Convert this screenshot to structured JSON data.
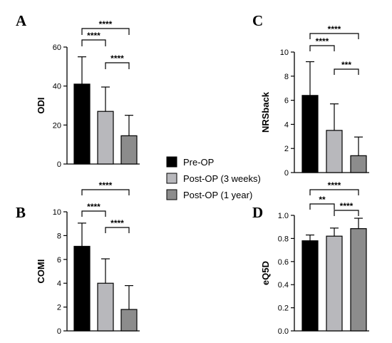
{
  "legend": {
    "items": [
      {
        "label": "Pre-OP",
        "color": "#000000"
      },
      {
        "label": "Post-OP (3 weeks)",
        "color": "#b8b8bc"
      },
      {
        "label": "Post-OP (1 year)",
        "color": "#8c8c8c"
      }
    ]
  },
  "chart_data": [
    {
      "type": "bar",
      "panel": "A",
      "ylabel": "ODI",
      "ylim": [
        0,
        60
      ],
      "yticks": [
        "0",
        "20",
        "40",
        "60"
      ],
      "categories": [
        "Pre-OP",
        "Post-OP (3 weeks)",
        "Post-OP (1 year)"
      ],
      "values": [
        41,
        27,
        14.5
      ],
      "errors": [
        14,
        12.5,
        10.5
      ],
      "significance": [
        {
          "from": 0,
          "to": 1,
          "label": "****"
        },
        {
          "from": 1,
          "to": 2,
          "label": "****"
        },
        {
          "from": 0,
          "to": 2,
          "label": "****"
        }
      ]
    },
    {
      "type": "bar",
      "panel": "C",
      "ylabel": "NRSback",
      "ylim": [
        0,
        10
      ],
      "yticks": [
        "0",
        "2",
        "4",
        "6",
        "8",
        "10"
      ],
      "categories": [
        "Pre-OP",
        "Post-OP (3 weeks)",
        "Post-OP (1 year)"
      ],
      "values": [
        6.4,
        3.5,
        1.4
      ],
      "errors": [
        2.8,
        2.2,
        1.55
      ],
      "significance": [
        {
          "from": 0,
          "to": 1,
          "label": "****"
        },
        {
          "from": 1,
          "to": 2,
          "label": "***"
        },
        {
          "from": 0,
          "to": 2,
          "label": "****"
        }
      ]
    },
    {
      "type": "bar",
      "panel": "B",
      "ylabel": "COMI",
      "ylim": [
        0,
        10
      ],
      "yticks": [
        "0",
        "2",
        "4",
        "6",
        "8",
        "10"
      ],
      "categories": [
        "Pre-OP",
        "Post-OP (3 weeks)",
        "Post-OP (1 year)"
      ],
      "values": [
        7.1,
        4.0,
        1.8
      ],
      "errors": [
        1.95,
        2.05,
        2.0
      ],
      "significance": [
        {
          "from": 0,
          "to": 1,
          "label": "****"
        },
        {
          "from": 1,
          "to": 2,
          "label": "****"
        },
        {
          "from": 0,
          "to": 2,
          "label": "****"
        }
      ]
    },
    {
      "type": "bar",
      "panel": "D",
      "ylabel": "eQ5D",
      "ylim": [
        0,
        1.0
      ],
      "yticks": [
        "0.0",
        "0.2",
        "0.4",
        "0.6",
        "0.8",
        "1.0"
      ],
      "categories": [
        "Pre-OP",
        "Post-OP (3 weeks)",
        "Post-OP (1 year)"
      ],
      "values": [
        0.78,
        0.82,
        0.885
      ],
      "errors": [
        0.05,
        0.07,
        0.09
      ],
      "significance": [
        {
          "from": 0,
          "to": 1,
          "label": "**"
        },
        {
          "from": 1,
          "to": 2,
          "label": "****"
        },
        {
          "from": 0,
          "to": 2,
          "label": "****"
        }
      ]
    }
  ]
}
